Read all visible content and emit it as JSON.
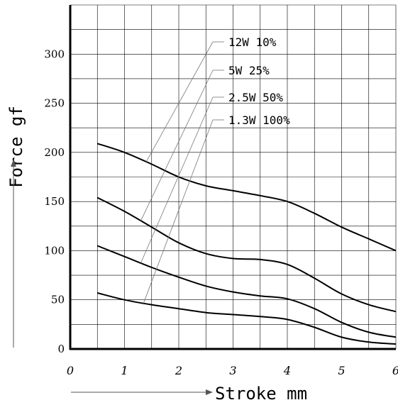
{
  "chart_data": {
    "type": "line",
    "xlabel": "Stroke mm",
    "ylabel": "Force gf",
    "xlim": [
      0,
      6
    ],
    "ylim": [
      0,
      350
    ],
    "x_ticks": [
      "0",
      "1",
      "2",
      "3",
      "4",
      "5",
      "6"
    ],
    "y_ticks": [
      "0",
      "50",
      "100",
      "150",
      "200",
      "250",
      "300"
    ],
    "grid": true,
    "legend_position": "top-center",
    "line_color": "#000000",
    "series": [
      {
        "name": "12W 10%",
        "x": [
          0.5,
          1,
          1.5,
          2,
          2.5,
          3,
          3.5,
          4,
          4.5,
          5,
          5.5,
          6
        ],
        "y": [
          209,
          200,
          188,
          175,
          166,
          161,
          156,
          150,
          138,
          124,
          112,
          100
        ]
      },
      {
        "name": "5W 25%",
        "x": [
          0.5,
          1,
          1.5,
          2,
          2.5,
          3,
          3.5,
          4,
          4.5,
          5,
          5.5,
          6
        ],
        "y": [
          154,
          140,
          124,
          108,
          97,
          92,
          91,
          86,
          72,
          56,
          45,
          38
        ]
      },
      {
        "name": "2.5W 50%",
        "x": [
          0.5,
          1,
          1.5,
          2,
          2.5,
          3,
          3.5,
          4,
          4.5,
          5,
          5.5,
          6
        ],
        "y": [
          105,
          94,
          83,
          73,
          64,
          58,
          54,
          51,
          41,
          27,
          17,
          12
        ]
      },
      {
        "name": "1.3W 100%",
        "x": [
          0.5,
          1,
          1.5,
          2,
          2.5,
          3,
          3.5,
          4,
          4.5,
          5,
          5.5,
          6
        ],
        "y": [
          57,
          50,
          45,
          41,
          37,
          35,
          33,
          30,
          22,
          12,
          7,
          5
        ]
      }
    ]
  }
}
